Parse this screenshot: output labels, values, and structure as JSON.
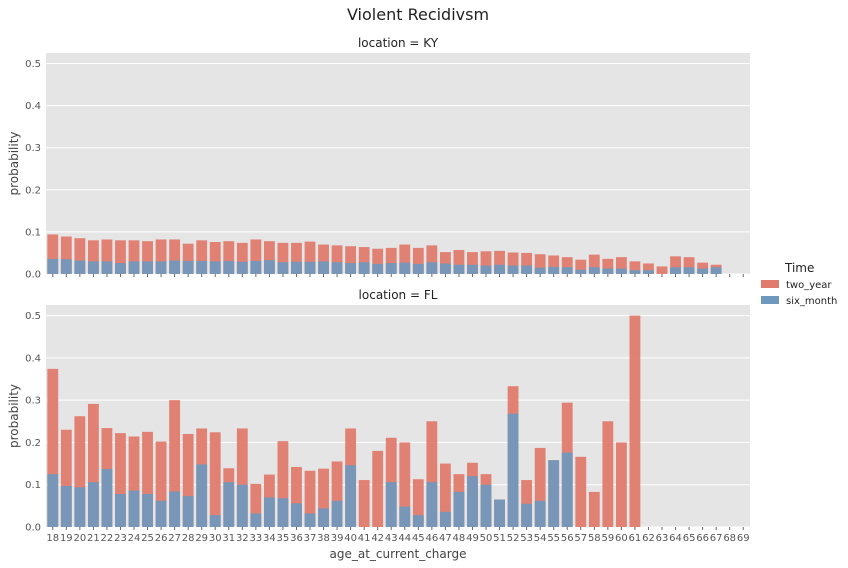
{
  "chart_data": {
    "type": "bar",
    "title": "Violent Recidivsm",
    "xlabel": "age_at_current_charge",
    "ylabel": "probability",
    "ylim": [
      0,
      0.525
    ],
    "yticks": [
      "0.0",
      "0.1",
      "0.2",
      "0.3",
      "0.4",
      "0.5"
    ],
    "grid": true,
    "legend": {
      "title": "Time",
      "position": "right",
      "entries": [
        "two_year",
        "six_month"
      ]
    },
    "colors": {
      "two_year": "#e07b6e",
      "six_month": "#6f98bd",
      "panel_bg": "#e5e5e5"
    },
    "categories": [
      "18",
      "19",
      "20",
      "21",
      "22",
      "23",
      "24",
      "25",
      "26",
      "27",
      "28",
      "29",
      "30",
      "31",
      "32",
      "33",
      "34",
      "35",
      "36",
      "37",
      "38",
      "39",
      "40",
      "41",
      "42",
      "43",
      "44",
      "45",
      "46",
      "47",
      "48",
      "49",
      "50",
      "51",
      "52",
      "53",
      "54",
      "55",
      "56",
      "57",
      "58",
      "59",
      "60",
      "61",
      "62",
      "63",
      "64",
      "65",
      "66",
      "67",
      "68",
      "69"
    ],
    "panels": [
      {
        "title": "location = KY",
        "series": [
          {
            "name": "two_year",
            "values": [
              0.094,
              0.089,
              0.085,
              0.08,
              0.082,
              0.08,
              0.08,
              0.078,
              0.082,
              0.082,
              0.072,
              0.08,
              0.076,
              0.078,
              0.074,
              0.082,
              0.078,
              0.074,
              0.074,
              0.077,
              0.07,
              0.068,
              0.066,
              0.064,
              0.06,
              0.062,
              0.07,
              0.062,
              0.068,
              0.052,
              0.057,
              0.052,
              0.054,
              0.055,
              0.051,
              0.05,
              0.047,
              0.044,
              0.04,
              0.034,
              0.046,
              0.036,
              0.04,
              0.03,
              0.025,
              0.018,
              0.042,
              0.04,
              0.027,
              0.022,
              null,
              null
            ]
          },
          {
            "name": "six_month",
            "values": [
              0.036,
              0.035,
              0.032,
              0.03,
              0.03,
              0.026,
              0.03,
              0.03,
              0.03,
              0.032,
              0.031,
              0.031,
              0.03,
              0.031,
              0.029,
              0.031,
              0.033,
              0.028,
              0.029,
              0.029,
              0.03,
              0.028,
              0.026,
              0.028,
              0.024,
              0.026,
              0.027,
              0.024,
              0.028,
              0.025,
              0.022,
              0.022,
              0.02,
              0.022,
              0.02,
              0.02,
              0.015,
              0.017,
              0.016,
              0.01,
              0.016,
              0.013,
              0.013,
              0.009,
              0.009,
              null,
              0.016,
              0.016,
              0.013,
              0.016,
              null,
              null
            ]
          }
        ]
      },
      {
        "title": "location = FL",
        "series": [
          {
            "name": "two_year",
            "values": [
              0.374,
              0.23,
              0.262,
              0.291,
              0.234,
              0.222,
              0.214,
              0.225,
              0.202,
              0.3,
              0.22,
              0.233,
              0.224,
              0.139,
              0.233,
              0.102,
              0.124,
              0.203,
              0.142,
              0.133,
              0.138,
              0.155,
              0.233,
              0.111,
              0.18,
              0.211,
              0.2,
              0.113,
              0.25,
              0.15,
              0.125,
              0.152,
              0.125,
              0.065,
              0.333,
              0.111,
              0.187,
              0.158,
              0.294,
              0.166,
              0.083,
              0.25,
              0.2,
              0.5,
              null,
              null,
              null,
              null,
              null,
              null,
              null,
              null
            ]
          },
          {
            "name": "six_month",
            "values": [
              0.125,
              0.097,
              0.094,
              0.106,
              0.137,
              0.078,
              0.086,
              0.078,
              0.062,
              0.084,
              0.073,
              0.148,
              0.028,
              0.106,
              0.1,
              0.032,
              0.07,
              0.068,
              0.056,
              0.032,
              0.044,
              0.062,
              0.146,
              null,
              null,
              0.106,
              0.048,
              0.028,
              0.106,
              0.036,
              0.083,
              0.12,
              0.1,
              0.065,
              0.268,
              0.055,
              0.062,
              0.158,
              0.176,
              null,
              null,
              null,
              null,
              null,
              null,
              null,
              null,
              null,
              null,
              null,
              null,
              null
            ]
          }
        ]
      }
    ]
  }
}
